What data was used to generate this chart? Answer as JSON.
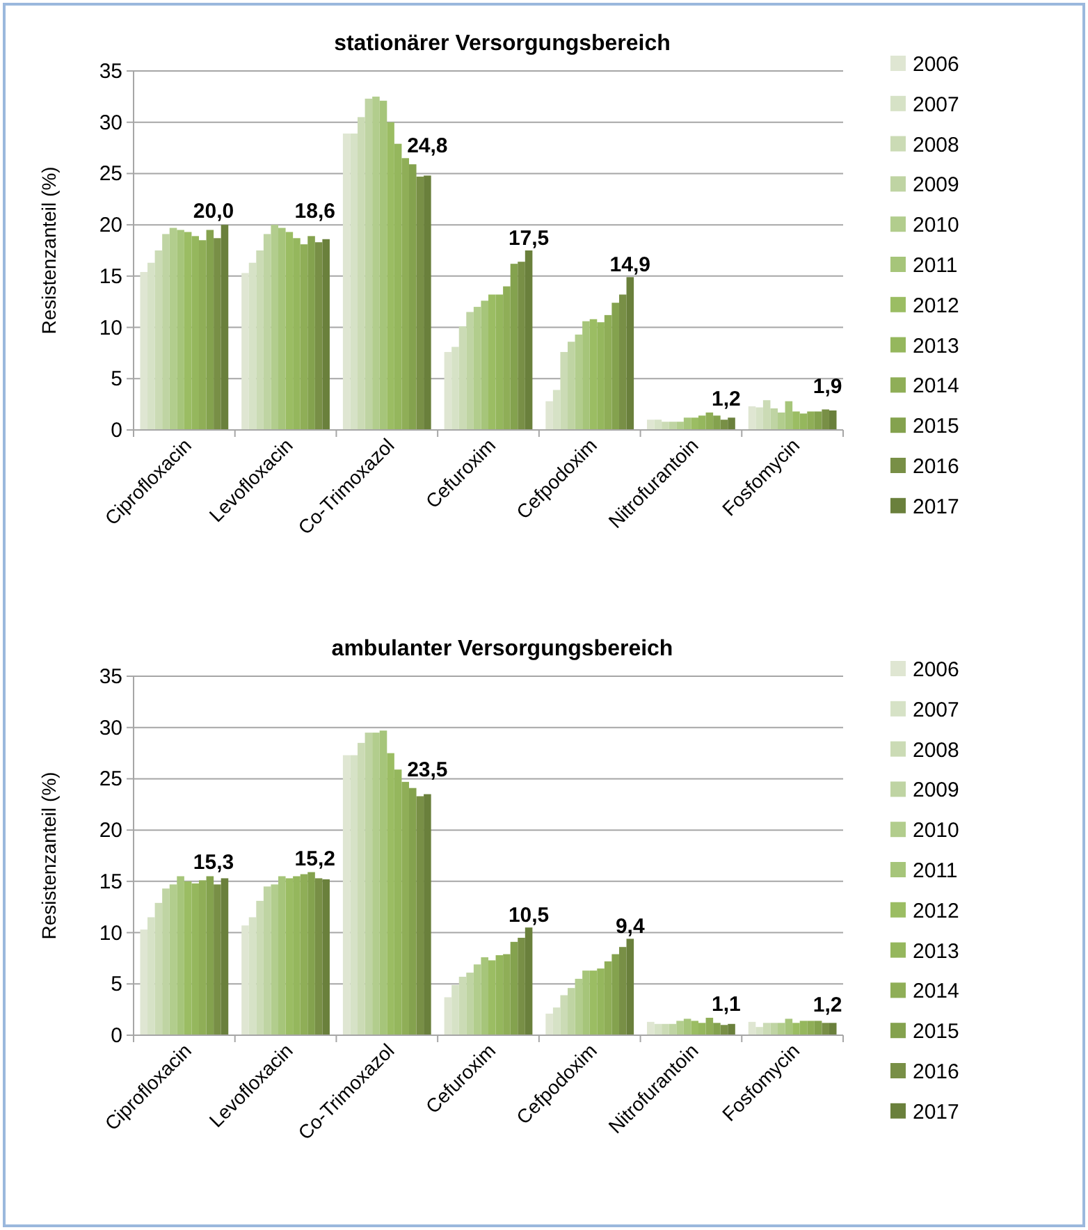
{
  "chart_data": [
    {
      "type": "bar",
      "title": "stationärer Versorgungsbereich",
      "ylabel": "Resistenzanteil (%)",
      "categories": [
        "Ciprofloxacin",
        "Levofloxacin",
        "Co-Trimoxazol",
        "Cefuroxim",
        "Cefpodoxim",
        "Nitrofurantoin",
        "Fosfomycin"
      ],
      "ylim": [
        0,
        35
      ],
      "yticks": [
        0,
        5,
        10,
        15,
        20,
        25,
        30,
        35
      ],
      "grid": "y",
      "legend": "right",
      "series": [
        {
          "name": "2006",
          "color": "#dfe6d2",
          "values": [
            15.4,
            15.3,
            28.9,
            7.6,
            2.8,
            1.0,
            2.3
          ]
        },
        {
          "name": "2007",
          "color": "#d6e2c6",
          "values": [
            16.3,
            16.3,
            28.9,
            8.1,
            3.9,
            1.0,
            2.2
          ]
        },
        {
          "name": "2008",
          "color": "#cbdbb5",
          "values": [
            17.5,
            17.5,
            30.5,
            10.1,
            7.6,
            0.8,
            2.9
          ]
        },
        {
          "name": "2009",
          "color": "#bfd4a3",
          "values": [
            19.1,
            19.1,
            32.3,
            11.5,
            8.6,
            0.8,
            2.1
          ]
        },
        {
          "name": "2010",
          "color": "#b2cd8d",
          "values": [
            19.7,
            20.0,
            32.5,
            12.0,
            9.3,
            0.8,
            1.7
          ]
        },
        {
          "name": "2011",
          "color": "#a6c57a",
          "values": [
            19.5,
            19.7,
            32.1,
            12.6,
            10.6,
            1.2,
            2.8
          ]
        },
        {
          "name": "2012",
          "color": "#9bbd63",
          "values": [
            19.3,
            19.3,
            30.0,
            13.2,
            10.8,
            1.2,
            1.8
          ]
        },
        {
          "name": "2013",
          "color": "#95b75d",
          "values": [
            18.9,
            18.7,
            27.9,
            13.2,
            10.5,
            1.4,
            1.6
          ]
        },
        {
          "name": "2014",
          "color": "#8fae57",
          "values": [
            18.5,
            18.1,
            26.5,
            14.0,
            11.2,
            1.7,
            1.8
          ]
        },
        {
          "name": "2015",
          "color": "#84a24e",
          "values": [
            19.5,
            18.9,
            25.9,
            16.2,
            12.4,
            1.4,
            1.8
          ]
        },
        {
          "name": "2016",
          "color": "#788f46",
          "values": [
            18.7,
            18.3,
            24.7,
            16.4,
            13.2,
            1.0,
            2.0
          ]
        },
        {
          "name": "2017",
          "color": "#6a803c",
          "values": [
            20.0,
            18.6,
            24.8,
            17.5,
            14.9,
            1.2,
            1.9
          ],
          "value_labels": [
            "20,0",
            "18,6",
            "24,8",
            "17,5",
            "14,9",
            "1,2",
            "1,9"
          ]
        }
      ]
    },
    {
      "type": "bar",
      "title": "ambulanter Versorgungsbereich",
      "ylabel": "Resistenzanteil (%)",
      "categories": [
        "Ciprofloxacin",
        "Levofloxacin",
        "Co-Trimoxazol",
        "Cefuroxim",
        "Cefpodoxim",
        "Nitrofurantoin",
        "Fosfomycin"
      ],
      "ylim": [
        0,
        35
      ],
      "yticks": [
        0,
        5,
        10,
        15,
        20,
        25,
        30,
        35
      ],
      "grid": "y",
      "legend": "right",
      "series": [
        {
          "name": "2006",
          "color": "#dfe6d2",
          "values": [
            10.3,
            10.7,
            27.3,
            3.7,
            2.1,
            1.3,
            1.3
          ]
        },
        {
          "name": "2007",
          "color": "#d6e2c6",
          "values": [
            11.5,
            11.5,
            27.3,
            4.9,
            2.7,
            1.1,
            0.8
          ]
        },
        {
          "name": "2008",
          "color": "#cbdbb5",
          "values": [
            12.9,
            13.1,
            28.5,
            5.7,
            3.9,
            1.1,
            1.2
          ]
        },
        {
          "name": "2009",
          "color": "#bfd4a3",
          "values": [
            14.3,
            14.5,
            29.5,
            6.1,
            4.6,
            1.1,
            1.2
          ]
        },
        {
          "name": "2010",
          "color": "#b2cd8d",
          "values": [
            14.7,
            14.7,
            29.5,
            6.9,
            5.5,
            1.4,
            1.2
          ]
        },
        {
          "name": "2011",
          "color": "#a6c57a",
          "values": [
            15.5,
            15.5,
            29.7,
            7.6,
            6.3,
            1.6,
            1.6
          ]
        },
        {
          "name": "2012",
          "color": "#9bbd63",
          "values": [
            15.0,
            15.3,
            27.5,
            7.3,
            6.3,
            1.4,
            1.2
          ]
        },
        {
          "name": "2013",
          "color": "#95b75d",
          "values": [
            14.8,
            15.5,
            25.9,
            7.8,
            6.5,
            1.2,
            1.4
          ]
        },
        {
          "name": "2014",
          "color": "#8fae57",
          "values": [
            15.1,
            15.7,
            24.7,
            7.9,
            7.2,
            1.7,
            1.4
          ]
        },
        {
          "name": "2015",
          "color": "#84a24e",
          "values": [
            15.5,
            15.9,
            24.1,
            9.1,
            7.9,
            1.2,
            1.4
          ]
        },
        {
          "name": "2016",
          "color": "#788f46",
          "values": [
            14.7,
            15.3,
            23.3,
            9.5,
            8.6,
            1.0,
            1.2
          ]
        },
        {
          "name": "2017",
          "color": "#6a803c",
          "values": [
            15.3,
            15.2,
            23.5,
            10.5,
            9.4,
            1.1,
            1.2
          ],
          "value_labels": [
            "15,3",
            "15,2",
            "23,5",
            "10,5",
            "9,4",
            "1,1",
            "1,2"
          ]
        }
      ]
    }
  ]
}
